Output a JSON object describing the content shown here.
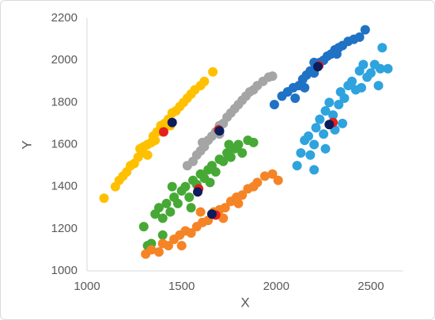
{
  "chart_data": {
    "type": "scatter",
    "x_label": "X",
    "y_label": "Y",
    "xlim": [
      1000,
      2670
    ],
    "ylim": [
      1000,
      2200
    ],
    "xticks": [
      1000,
      1500,
      2000,
      2500
    ],
    "yticks": [
      1000,
      1200,
      1400,
      1600,
      1800,
      2000,
      2200
    ],
    "grid": false,
    "series": [
      {
        "color": "#FFC000",
        "x": [
          1090,
          1150,
          1170,
          1190,
          1210,
          1230,
          1250,
          1270,
          1290,
          1300,
          1320,
          1340,
          1350,
          1370,
          1390,
          1410,
          1430,
          1450,
          1470,
          1490,
          1510,
          1530,
          1550,
          1570,
          1600,
          1620,
          1665,
          1280,
          1360,
          1440,
          1320,
          1400
        ],
        "y": [
          1345,
          1400,
          1430,
          1450,
          1470,
          1500,
          1510,
          1540,
          1560,
          1590,
          1600,
          1610,
          1640,
          1660,
          1690,
          1700,
          1720,
          1750,
          1760,
          1780,
          1800,
          1820,
          1840,
          1860,
          1880,
          1900,
          1945,
          1580,
          1620,
          1690,
          1550,
          1660
        ]
      },
      {
        "color": "#A5A5A5",
        "x": [
          1530,
          1560,
          1580,
          1600,
          1620,
          1640,
          1660,
          1680,
          1700,
          1720,
          1740,
          1760,
          1780,
          1800,
          1820,
          1840,
          1860,
          1880,
          1900,
          1930,
          1960,
          1980,
          1610,
          1700
        ],
        "y": [
          1500,
          1520,
          1550,
          1570,
          1590,
          1620,
          1640,
          1660,
          1690,
          1700,
          1730,
          1750,
          1770,
          1790,
          1810,
          1830,
          1850,
          1860,
          1880,
          1900,
          1920,
          1925,
          1610,
          1650
        ]
      },
      {
        "color": "#46A935",
        "x": [
          1300,
          1320,
          1340,
          1360,
          1380,
          1400,
          1420,
          1440,
          1460,
          1480,
          1500,
          1520,
          1540,
          1560,
          1580,
          1600,
          1620,
          1640,
          1660,
          1680,
          1700,
          1720,
          1740,
          1760,
          1780,
          1800,
          1820,
          1850,
          1880,
          1400,
          1450,
          1550,
          1650,
          1750
        ],
        "y": [
          1210,
          1120,
          1130,
          1270,
          1300,
          1250,
          1320,
          1280,
          1350,
          1320,
          1380,
          1400,
          1350,
          1430,
          1410,
          1460,
          1440,
          1480,
          1500,
          1470,
          1530,
          1520,
          1560,
          1540,
          1580,
          1600,
          1560,
          1620,
          1610,
          1170,
          1400,
          1300,
          1420,
          1600
        ]
      },
      {
        "color": "#F58426",
        "x": [
          1310,
          1340,
          1380,
          1400,
          1430,
          1460,
          1490,
          1520,
          1550,
          1580,
          1610,
          1640,
          1670,
          1700,
          1730,
          1760,
          1790,
          1820,
          1850,
          1880,
          1900,
          1940,
          1980,
          2010,
          1500,
          1600,
          1720,
          1800
        ],
        "y": [
          1080,
          1100,
          1090,
          1130,
          1120,
          1150,
          1170,
          1190,
          1180,
          1210,
          1230,
          1240,
          1280,
          1290,
          1300,
          1330,
          1350,
          1360,
          1390,
          1400,
          1420,
          1450,
          1460,
          1430,
          1120,
          1280,
          1250,
          1320
        ]
      },
      {
        "color": "#1F72C4",
        "x": [
          1990,
          2030,
          2060,
          2090,
          2120,
          2140,
          2160,
          2180,
          2200,
          2230,
          2250,
          2270,
          2290,
          2310,
          2330,
          2350,
          2380,
          2410,
          2440,
          2470,
          2100,
          2200,
          2320,
          2150
        ],
        "y": [
          1790,
          1830,
          1850,
          1870,
          1880,
          1910,
          1930,
          1950,
          1940,
          1990,
          2000,
          2020,
          2030,
          2050,
          2060,
          2070,
          2090,
          2100,
          2110,
          2145,
          1820,
          1990,
          2030,
          1870
        ]
      },
      {
        "color": "#2EA3DE",
        "x": [
          2110,
          2130,
          2150,
          2170,
          2180,
          2200,
          2210,
          2230,
          2250,
          2260,
          2280,
          2300,
          2310,
          2330,
          2340,
          2360,
          2380,
          2400,
          2420,
          2440,
          2460,
          2480,
          2500,
          2520,
          2550,
          2560,
          2590,
          2540,
          2200,
          2260,
          2350,
          2450
        ],
        "y": [
          1500,
          1560,
          1620,
          1640,
          1550,
          1600,
          1680,
          1720,
          1650,
          1760,
          1800,
          1740,
          1670,
          1790,
          1850,
          1820,
          1880,
          1900,
          1860,
          1950,
          1980,
          1920,
          1940,
          1980,
          1960,
          2060,
          1960,
          1880,
          1480,
          1580,
          1700,
          1870
        ]
      },
      {
        "color": "#E3201B",
        "x": [
          1405,
          1695,
          1590,
          1680,
          2225,
          2300
        ],
        "y": [
          1660,
          1670,
          1390,
          1265,
          1975,
          1705
        ]
      },
      {
        "color": "#0E1C5C",
        "x": [
          1450,
          1700,
          1585,
          1660,
          2220,
          2280
        ],
        "y": [
          1705,
          1665,
          1375,
          1270,
          1970,
          1695
        ]
      }
    ]
  }
}
